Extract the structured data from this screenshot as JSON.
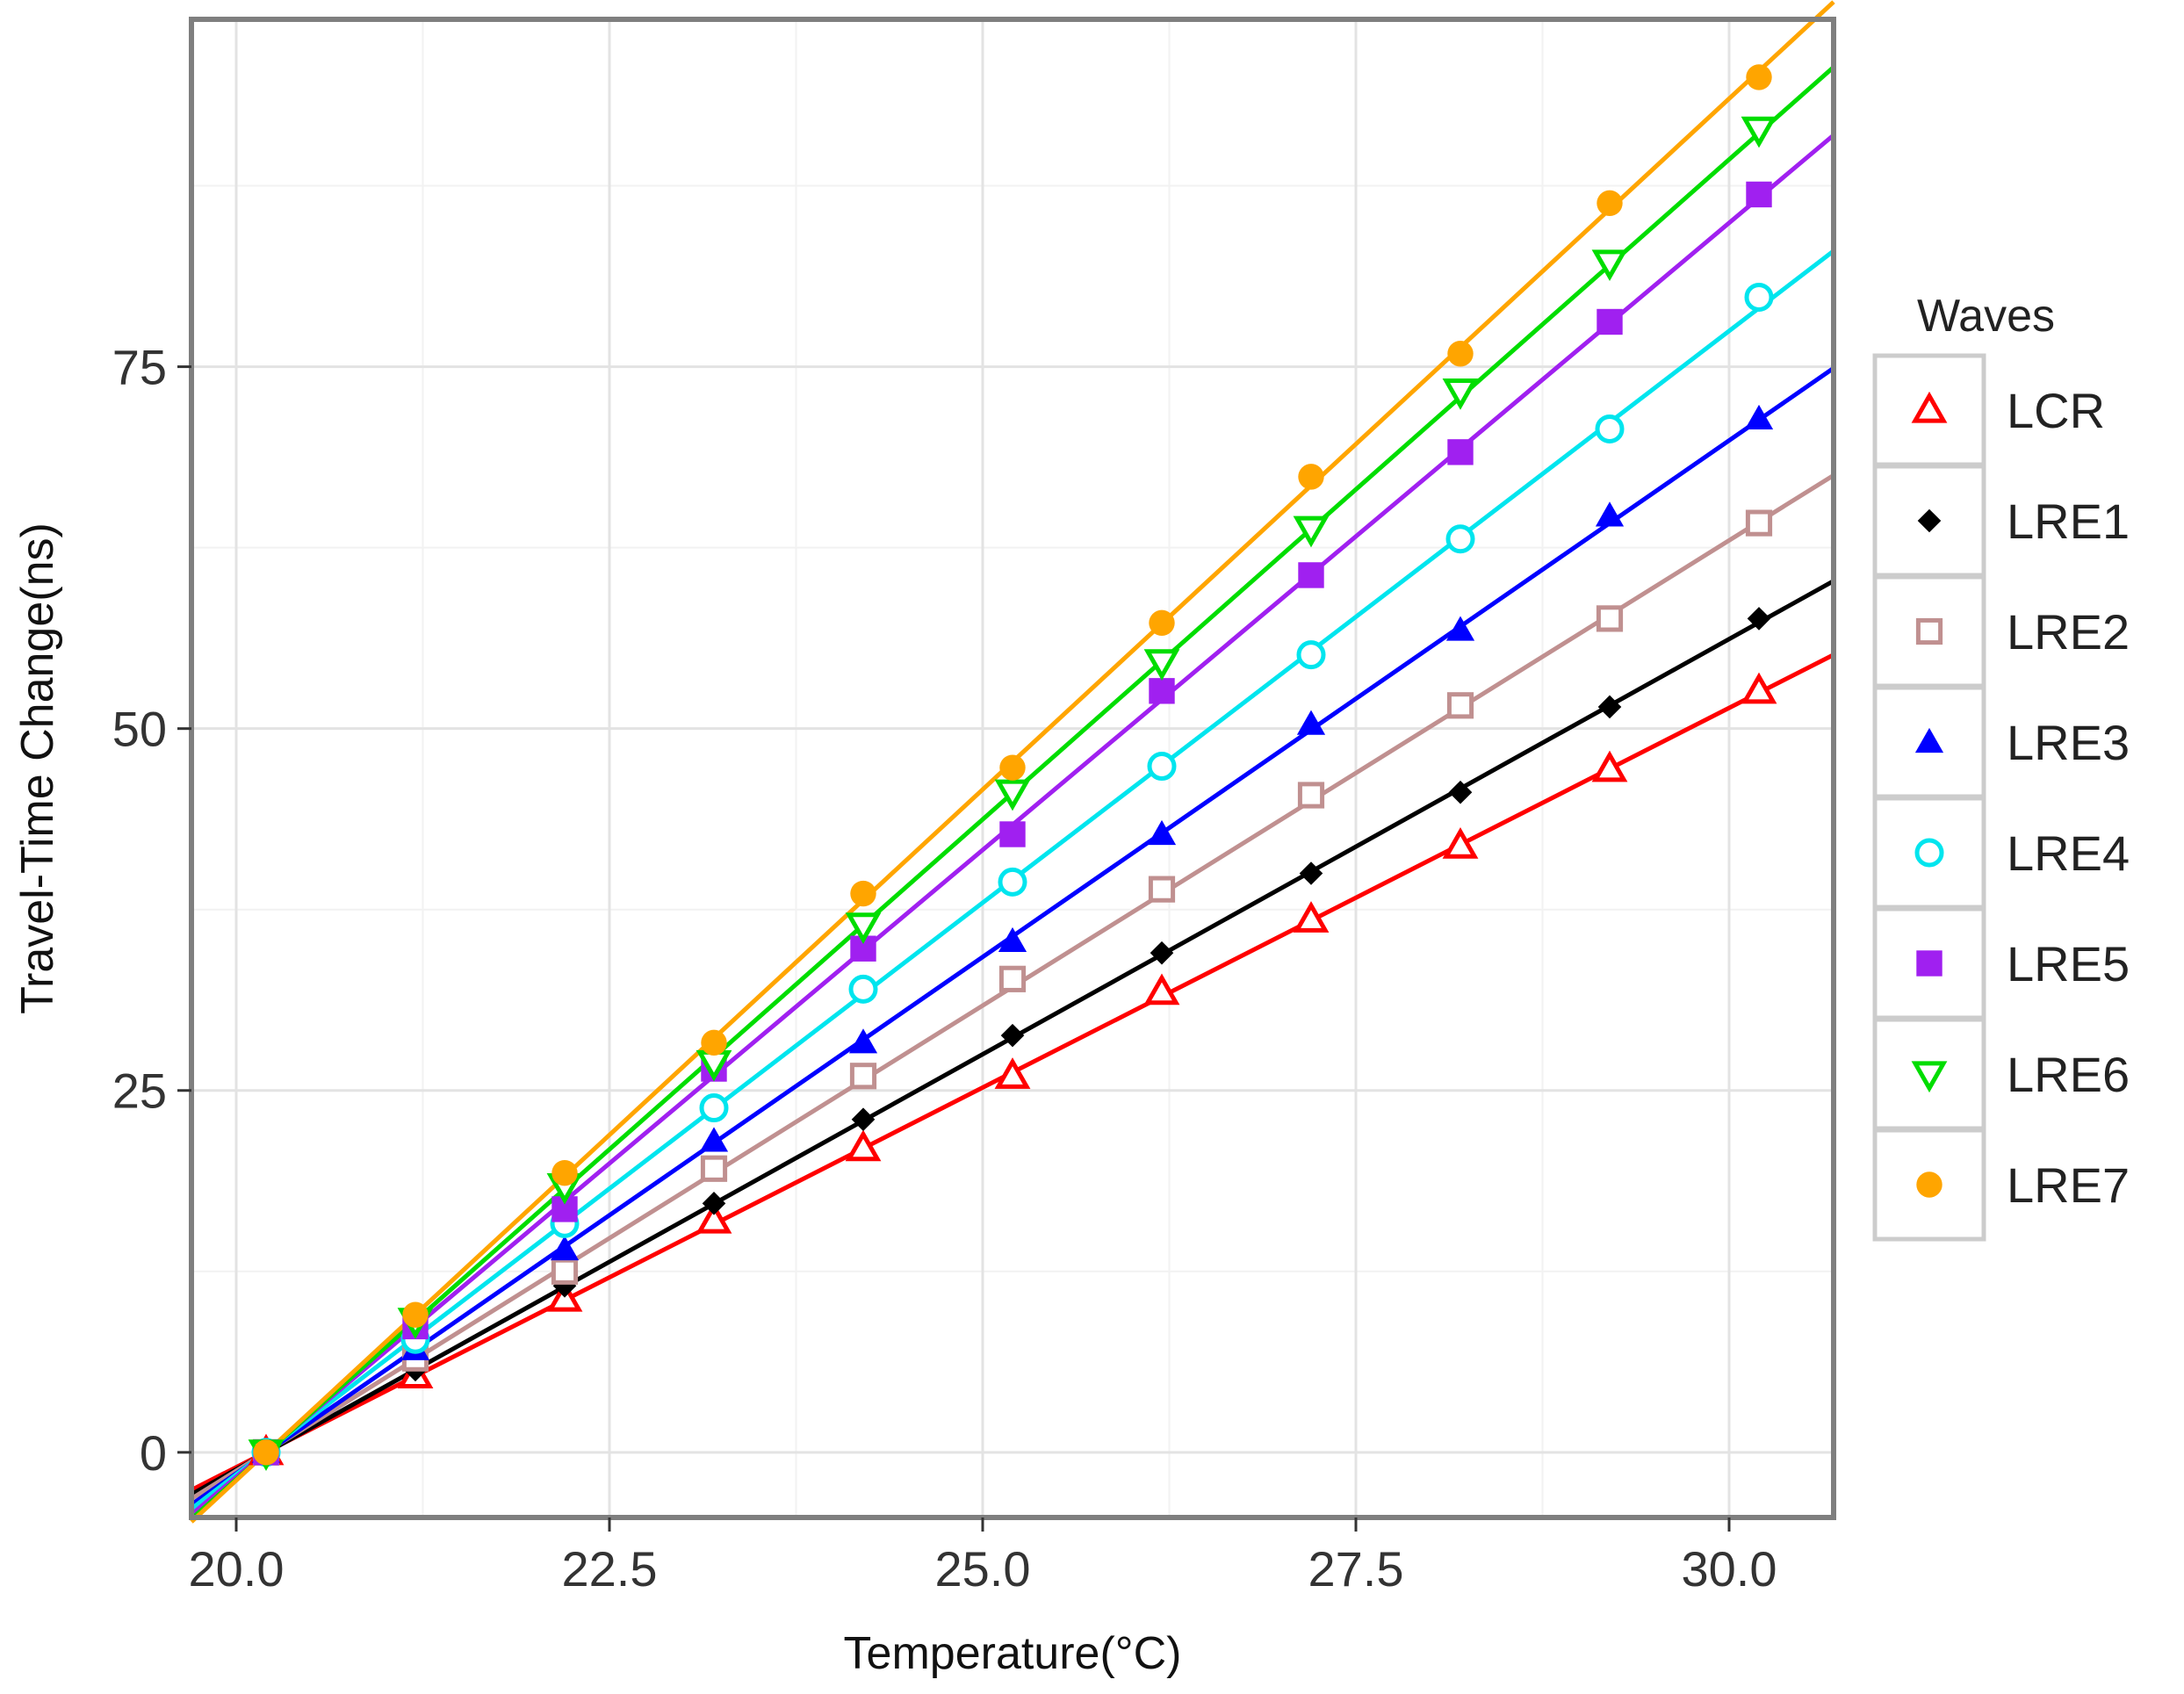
{
  "chart_data": {
    "type": "line",
    "title": "",
    "xlabel": "Temperature(°C)",
    "ylabel": "Travel-Time Change(ns)",
    "xlim": [
      19.7,
      30.7
    ],
    "ylim": [
      -4.5,
      99
    ],
    "x_ticks": [
      {
        "value": 20,
        "label": "20.0"
      },
      {
        "value": 22.5,
        "label": "22.5"
      },
      {
        "value": 25,
        "label": "25.0"
      },
      {
        "value": 27.5,
        "label": "27.5"
      },
      {
        "value": 30,
        "label": "30.0"
      }
    ],
    "y_ticks": [
      {
        "value": 0,
        "label": "0"
      },
      {
        "value": 25,
        "label": "25"
      },
      {
        "value": 50,
        "label": "50"
      },
      {
        "value": 75,
        "label": "75"
      }
    ],
    "grid": true,
    "legend_title": "Waves",
    "legend_position": "right",
    "x": [
      20.2,
      21.2,
      22.2,
      23.2,
      24.2,
      25.2,
      26.2,
      27.2,
      28.2,
      29.2,
      30.2
    ],
    "series": [
      {
        "name": "LCR",
        "color": "#ff0000",
        "marker": "triangle-open",
        "values": [
          0,
          5.3,
          10.6,
          16.0,
          21.0,
          26.0,
          31.8,
          36.8,
          41.9,
          47.2,
          52.6
        ],
        "fit": {
          "slope": 5.25,
          "at_xmin": -2.6,
          "at_xmax": 55.1
        }
      },
      {
        "name": "LRE1",
        "color": "#000000",
        "marker": "diamond",
        "values": [
          0,
          5.7,
          11.5,
          17.2,
          23.0,
          28.8,
          34.5,
          40.0,
          45.6,
          51.5,
          57.6
        ],
        "fit": {
          "slope": 5.74,
          "at_xmin": -2.9,
          "at_xmax": 60.2
        }
      },
      {
        "name": "LRE2",
        "color": "#c09090",
        "marker": "square-open",
        "values": [
          0,
          6.5,
          12.5,
          19.6,
          26.0,
          32.7,
          38.9,
          45.4,
          51.6,
          57.6,
          64.2
        ],
        "fit": {
          "slope": 6.42,
          "at_xmin": -3.2,
          "at_xmax": 67.5
        }
      },
      {
        "name": "LRE3",
        "color": "#0000ff",
        "marker": "triangle",
        "values": [
          0,
          7.1,
          14.0,
          21.5,
          28.3,
          35.3,
          42.7,
          50.3,
          56.8,
          64.7,
          71.4
        ],
        "fit": {
          "slope": 7.13,
          "at_xmin": -3.6,
          "at_xmax": 74.9
        }
      },
      {
        "name": "LRE4",
        "color": "#00e5ee",
        "marker": "circle-open",
        "values": [
          0,
          7.8,
          15.8,
          23.8,
          32.0,
          39.4,
          47.4,
          55.1,
          63.1,
          70.7,
          79.8
        ],
        "fit": {
          "slope": 7.9,
          "at_xmin": -3.9,
          "at_xmax": 83.0
        }
      },
      {
        "name": "LRE5",
        "color": "#a020f0",
        "marker": "square",
        "values": [
          0,
          8.7,
          16.8,
          26.5,
          34.8,
          42.7,
          52.6,
          60.6,
          69.1,
          78.1,
          86.9
        ],
        "fit": {
          "slope": 8.67,
          "at_xmin": -4.3,
          "at_xmax": 91.0
        }
      },
      {
        "name": "LRE6",
        "color": "#00dd00",
        "marker": "triangle-down-open",
        "values": [
          0,
          9.1,
          18.4,
          26.9,
          36.4,
          45.6,
          54.6,
          63.8,
          73.3,
          82.2,
          91.4
        ],
        "fit": {
          "slope": 9.12,
          "at_xmin": -4.6,
          "at_xmax": 95.7
        }
      },
      {
        "name": "LRE7",
        "color": "#ffa500",
        "marker": "circle",
        "values": [
          0,
          9.5,
          19.3,
          28.3,
          38.6,
          47.3,
          57.3,
          67.4,
          75.9,
          86.3,
          95.0
        ],
        "fit": {
          "slope": 9.55,
          "at_xmin": -4.8,
          "at_xmax": 100.2
        }
      }
    ]
  }
}
